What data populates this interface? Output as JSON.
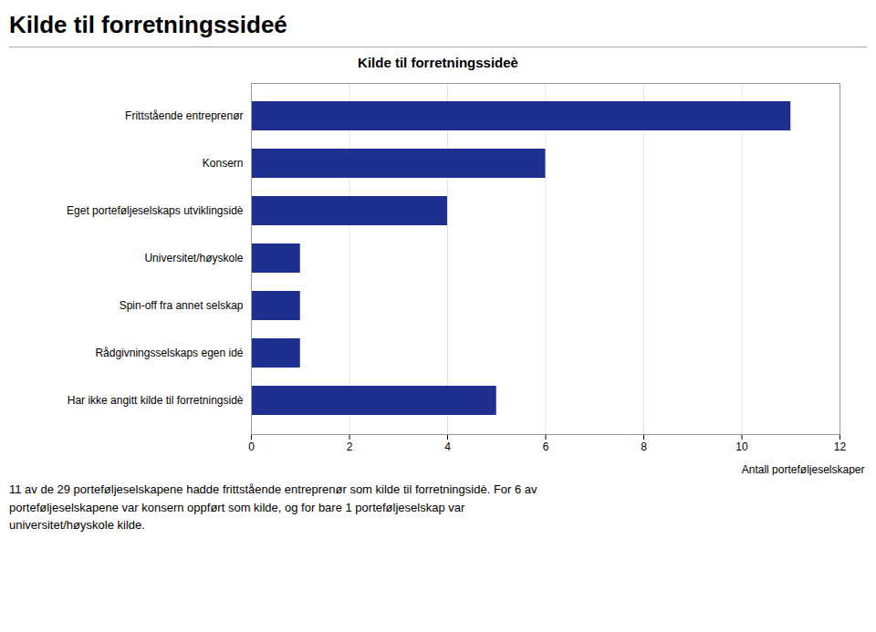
{
  "chart_data": {
    "type": "bar",
    "orientation": "horizontal",
    "title": "Kilde til forretningssideé",
    "subtitle": "Kilde til forretningssideè",
    "categories": [
      "Frittstående entreprenør",
      "Konsern",
      "Eget porteføljeselskaps utviklingsidè",
      "Universitet/høyskole",
      "Spin-off fra annet selskap",
      "Rådgivningsselskaps egen idé",
      "Har ikke angitt kilde til forretningsidè"
    ],
    "values": [
      11,
      6,
      4,
      1,
      1,
      1,
      5
    ],
    "color": "#1F2F8F",
    "xlabel": "Antall porteføljeselskaper",
    "xlim": [
      0,
      12
    ],
    "xticks": [
      0,
      2,
      4,
      6,
      8,
      10,
      12
    ],
    "grid": true,
    "annotations": [
      "11 av de 29 porteføljeselskapene hadde frittstående entreprenør som kilde til forretningsidè. For 6 av\nporteføljeselskapene var konsern oppført som kilde, og for bare 1 porteføljeselskap var\nuniversitet/høyskole kilde."
    ]
  }
}
